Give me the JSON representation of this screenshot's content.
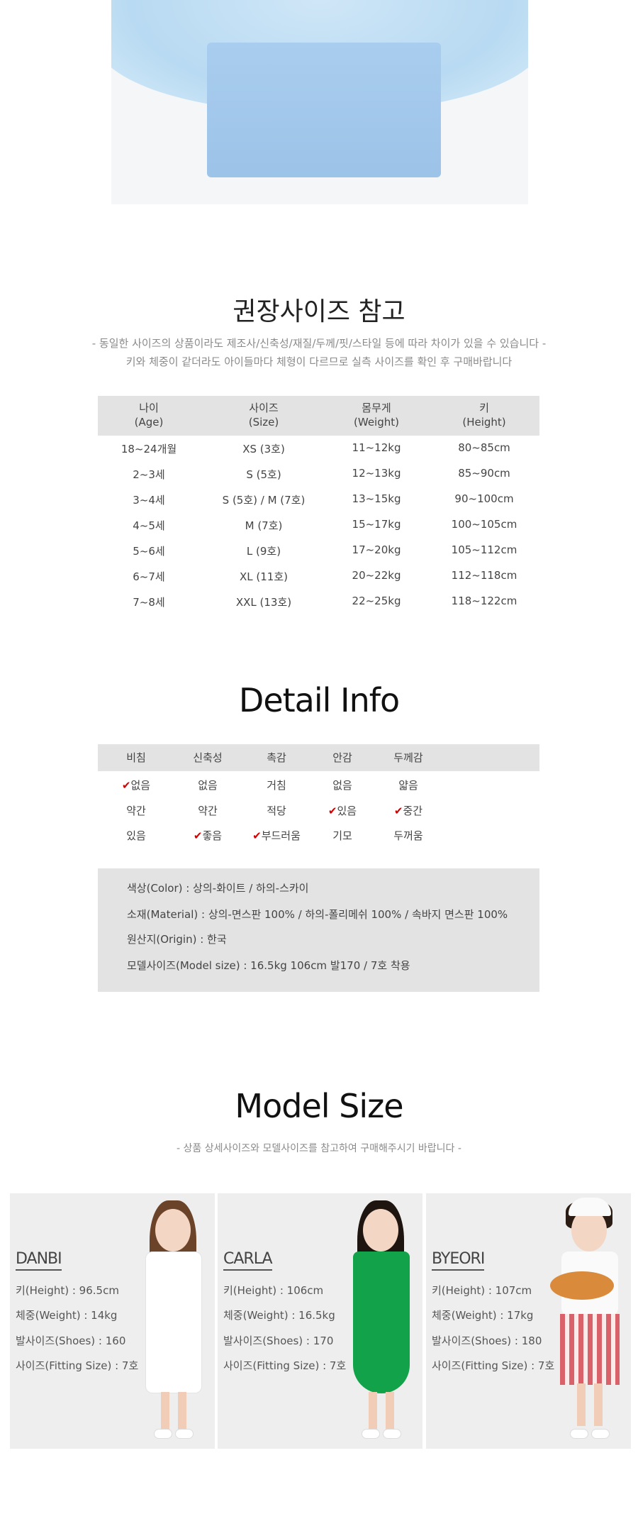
{
  "recommended_size": {
    "title": "권장사이즈 참고",
    "notes": [
      "- 동일한 사이즈의 상품이라도 제조사/신축성/재질/두께/핏/스타일 등에 따라 차이가 있을 수 있습니다 -",
      "키와 체중이 같더라도 아이들마다 체형이 다르므로 실측 사이즈를 확인 후 구매바랍니다"
    ],
    "headers": [
      {
        "ko": "나이",
        "en": "(Age)"
      },
      {
        "ko": "사이즈",
        "en": "(Size)"
      },
      {
        "ko": "몸무게",
        "en": "(Weight)"
      },
      {
        "ko": "키",
        "en": "(Height)"
      }
    ],
    "rows": [
      [
        "18~24개월",
        "XS (3호)",
        "11~12kg",
        "80~85cm"
      ],
      [
        "2~3세",
        "S (5호)",
        "12~13kg",
        "85~90cm"
      ],
      [
        "3~4세",
        "S (5호) / M (7호)",
        "13~15kg",
        "90~100cm"
      ],
      [
        "4~5세",
        "M (7호)",
        "15~17kg",
        "100~105cm"
      ],
      [
        "5~6세",
        "L (9호)",
        "17~20kg",
        "105~112cm"
      ],
      [
        "6~7세",
        "XL (11호)",
        "20~22kg",
        "112~118cm"
      ],
      [
        "7~8세",
        "XXL (13호)",
        "22~25kg",
        "118~122cm"
      ]
    ]
  },
  "detail_info": {
    "title": "Detail Info",
    "check_mark": "✔",
    "check_color": "#d40000",
    "columns": [
      {
        "header": "비침",
        "options": [
          "없음",
          "약간",
          "있음"
        ],
        "selected": 0
      },
      {
        "header": "신축성",
        "options": [
          "없음",
          "약간",
          "좋음"
        ],
        "selected": 2
      },
      {
        "header": "촉감",
        "options": [
          "거침",
          "적당",
          "부드러움"
        ],
        "selected": 2
      },
      {
        "header": "안감",
        "options": [
          "없음",
          "있음",
          "기모"
        ],
        "selected": 1
      },
      {
        "header": "두께감",
        "options": [
          "얇음",
          "중간",
          "두꺼움"
        ],
        "selected": 1
      }
    ],
    "info_lines": [
      "색상(Color) : 상의-화이트 / 하의-스카이",
      "소재(Material) : 상의-면스판 100% / 하의-폴리메쉬 100% / 속바지 면스판 100%",
      "원산지(Origin) : 한국",
      "모델사이즈(Model size) : 16.5kg  106cm  발170 / 7호 착용"
    ]
  },
  "model_size": {
    "title": "Model Size",
    "subtitle": "- 상품 상세사이즈와 모델사이즈를 참고하여 구매해주시기 바랍니다 -",
    "models": [
      {
        "name": "DANBI",
        "height": "키(Height) : 96.5cm",
        "weight": "체중(Weight) : 14kg",
        "shoes": "발사이즈(Shoes) : 160",
        "fitting": "사이즈(Fitting Size) : 7호",
        "outfit_color": "#ffffff"
      },
      {
        "name": "CARLA",
        "height": "키(Height) : 106cm",
        "weight": "체중(Weight) : 16.5kg",
        "shoes": "발사이즈(Shoes) : 170",
        "fitting": "사이즈(Fitting Size) : 7호",
        "outfit_color": "#12a24a"
      },
      {
        "name": "BYEORI",
        "height": "키(Height) : 107cm",
        "weight": "체중(Weight) : 17kg",
        "shoes": "발사이즈(Shoes) : 180",
        "fitting": "사이즈(Fitting Size) : 7호",
        "outfit_color": "#d9626a"
      }
    ]
  }
}
